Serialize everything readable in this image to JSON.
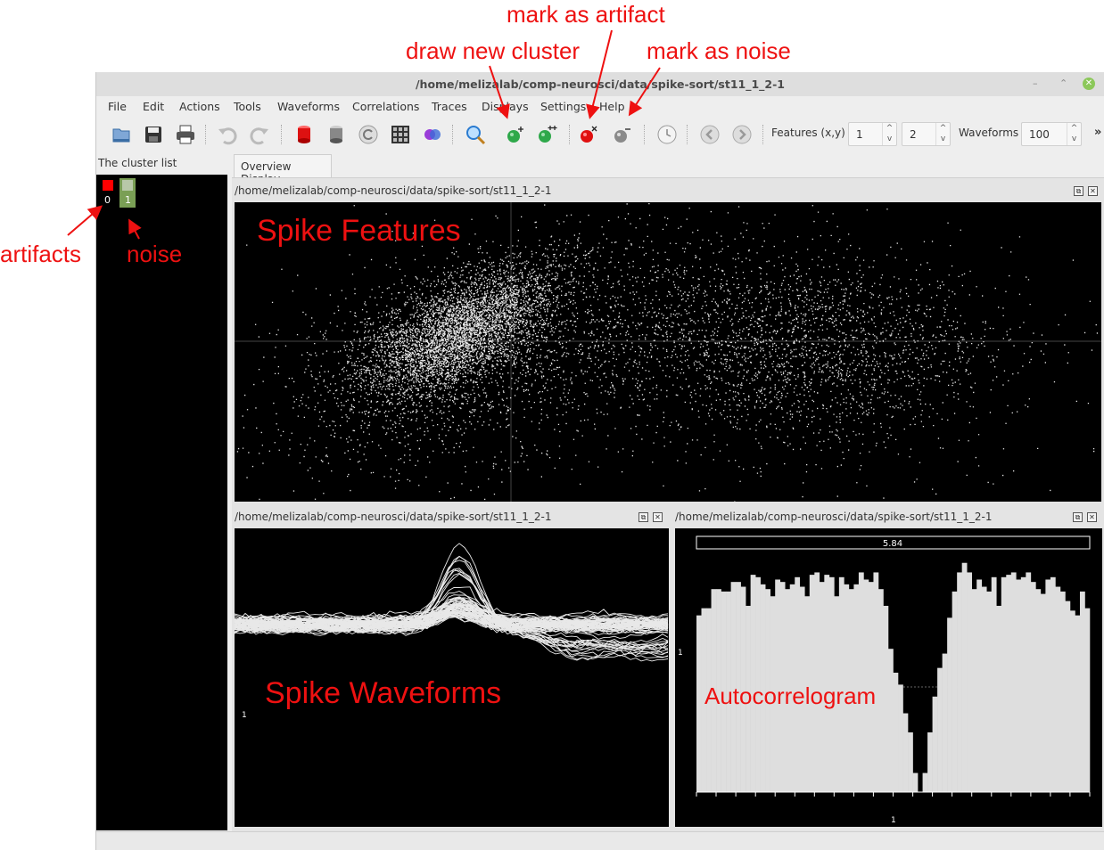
{
  "window": {
    "title": "/home/melizalab/comp-neurosci/data/spike-sort/st11_1_2-1",
    "minimize": "–",
    "restore": "⌃",
    "close": "✕"
  },
  "menu": [
    "File",
    "Edit",
    "Actions",
    "Tools",
    "Waveforms",
    "Correlations",
    "Traces",
    "Displays",
    "Settings",
    "Help"
  ],
  "toolbar": {
    "features_label": "Features (x,y)",
    "feature_x": "1",
    "feature_y": "2",
    "waveforms_label": "Waveforms",
    "waveforms_value": "100",
    "more": "»",
    "spin_up": "^",
    "spin_down": "v"
  },
  "cluster_list": {
    "label": "The cluster list",
    "clusters": [
      {
        "id": "0",
        "color": "#ff0000"
      },
      {
        "id": "1",
        "color": "#7a9f55"
      }
    ]
  },
  "tabs": [
    "Overview Display"
  ],
  "panels": {
    "features": {
      "title": "/home/melizalab/comp-neurosci/data/spike-sort/st11_1_2-1"
    },
    "waveforms": {
      "title": "/home/melizalab/comp-neurosci/data/spike-sort/st11_1_2-1",
      "axis_label": "1"
    },
    "autocorr": {
      "title": "/home/melizalab/comp-neurosci/data/spike-sort/st11_1_2-1",
      "peak_label": "5.84",
      "y_label": "1",
      "x_label": "1"
    },
    "float_btn": "⧉",
    "close_btn": "✕"
  },
  "annotations": {
    "mark_artifact": "mark as artifact",
    "draw_cluster": "draw new cluster",
    "mark_noise": "mark as noise",
    "artifacts": "artifacts",
    "noise": "noise",
    "spike_features": "Spike Features",
    "spike_waveforms": "Spike Waveforms",
    "autocorrelogram": "Autocorrelogram"
  },
  "autocorrelogram_data": [
    0.74,
    0.77,
    0.77,
    0.85,
    0.85,
    0.84,
    0.84,
    0.88,
    0.88,
    0.86,
    0.78,
    0.91,
    0.9,
    0.87,
    0.85,
    0.82,
    0.89,
    0.88,
    0.85,
    0.87,
    0.9,
    0.86,
    0.82,
    0.91,
    0.92,
    0.88,
    0.91,
    0.9,
    0.82,
    0.9,
    0.87,
    0.85,
    0.87,
    0.92,
    0.89,
    0.88,
    0.92,
    0.85,
    0.78,
    0.6,
    0.5,
    0.45,
    0.33,
    0.25,
    0.08,
    0.0,
    0.08,
    0.25,
    0.4,
    0.52,
    0.58,
    0.73,
    0.84,
    0.92,
    0.96,
    0.92,
    0.85,
    0.89,
    0.86,
    0.84,
    0.9,
    0.78,
    0.9,
    0.91,
    0.92,
    0.89,
    0.9,
    0.92,
    0.88,
    0.85,
    0.83,
    0.89,
    0.9,
    0.86,
    0.84,
    0.8,
    0.76,
    0.74,
    0.84,
    0.77
  ]
}
